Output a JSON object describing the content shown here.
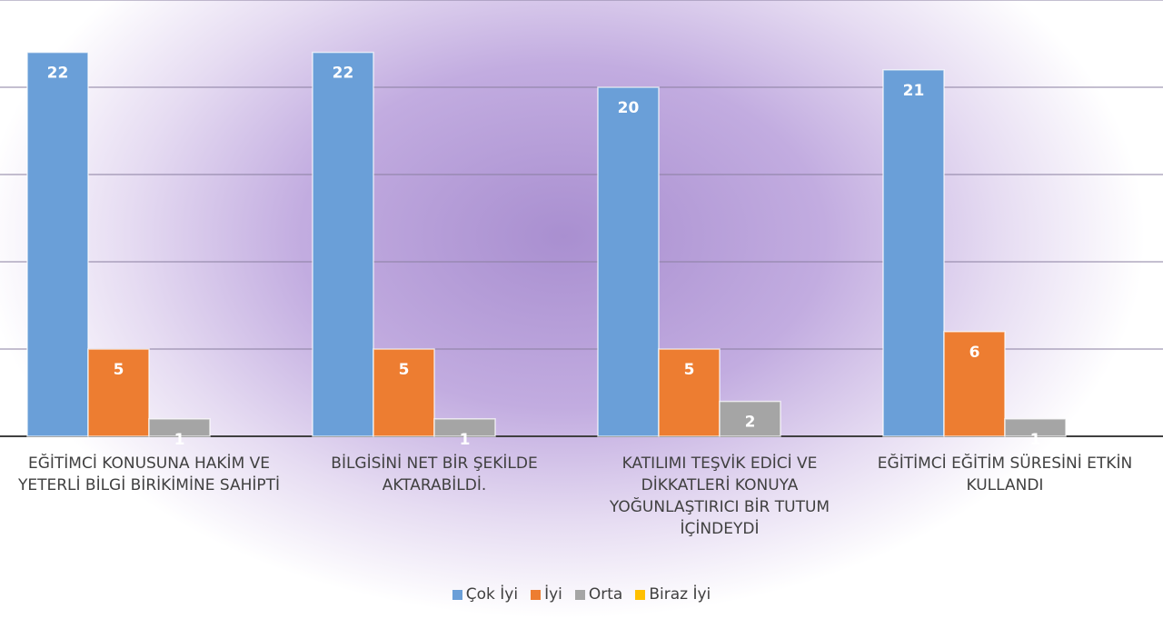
{
  "chart_data": {
    "type": "bar",
    "categories": [
      "EĞİTİMCİ KONUSUNA HAKİM VE YETERLİ BİLGİ BİRİKİMİNE SAHİPTİ",
      "BİLGİSİNİ NET BİR ŞEKİLDE AKTARABİLDİ.",
      "KATILIMI TEŞVİK EDİCİ VE DİKKATLERİ KONUYA YOĞUNLAŞTIRICI BİR TUTUM İÇİNDEYDİ",
      "EĞİTİMCİ EĞİTİM SÜRESİNİ ETKİN KULLANDI"
    ],
    "series": [
      {
        "name": "Çok İyi",
        "color": "#6a9fd8",
        "values": [
          22,
          22,
          20,
          21
        ]
      },
      {
        "name": "İyi",
        "color": "#ed7d31",
        "values": [
          5,
          5,
          5,
          6
        ]
      },
      {
        "name": "Orta",
        "color": "#a5a5a5",
        "values": [
          1,
          1,
          2,
          1
        ]
      },
      {
        "name": "Biraz İyi",
        "color": "#ffc000",
        "values": [
          null,
          null,
          null,
          null
        ]
      }
    ],
    "ylim": [
      0,
      25
    ],
    "yticks": [
      0,
      5,
      10,
      15,
      20,
      25
    ],
    "grid": true,
    "legend": "bottom"
  }
}
